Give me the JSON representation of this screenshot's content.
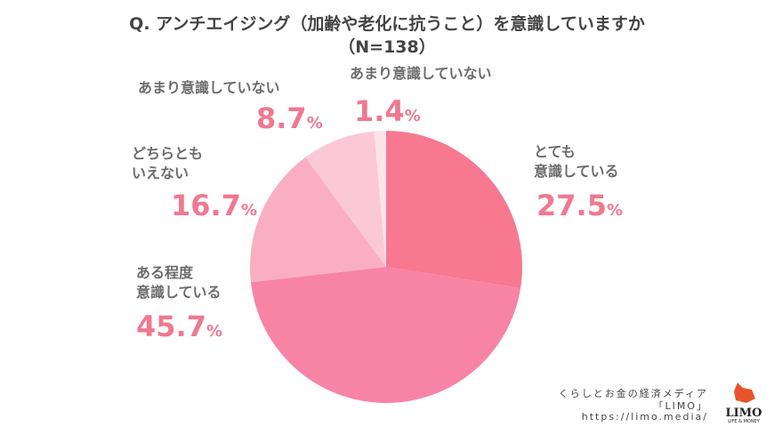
{
  "chart_data": {
    "type": "pie",
    "title": "Q. アンチエイジング（加齢や老化に抗うこと）を意識していますか",
    "subtitle": "（N=138）",
    "start": "top",
    "direction": "clockwise",
    "slices": [
      {
        "label": "とても\n意識している",
        "value": 27.5,
        "display": "27.5",
        "color": "#f7788f"
      },
      {
        "label": "ある程度\n意識している",
        "value": 45.7,
        "display": "45.7",
        "color": "#f783a5"
      },
      {
        "label": "どちらとも\nいえない",
        "value": 16.7,
        "display": "16.7",
        "color": "#f9aec4"
      },
      {
        "label": "あまり意識していない",
        "value": 8.7,
        "display": "8.7",
        "color": "#fbc8d8"
      },
      {
        "label": "あまり意識していない",
        "value": 1.4,
        "display": "1.4",
        "color": "#fde3ea"
      }
    ],
    "unit": "%"
  },
  "credit": {
    "line1": "くらしとお金の経済メディア",
    "line2": "「LIMO」",
    "line3": "https://limo.media/",
    "logo_text": "LIMO",
    "logo_sub": "LIFE & MONEY"
  }
}
